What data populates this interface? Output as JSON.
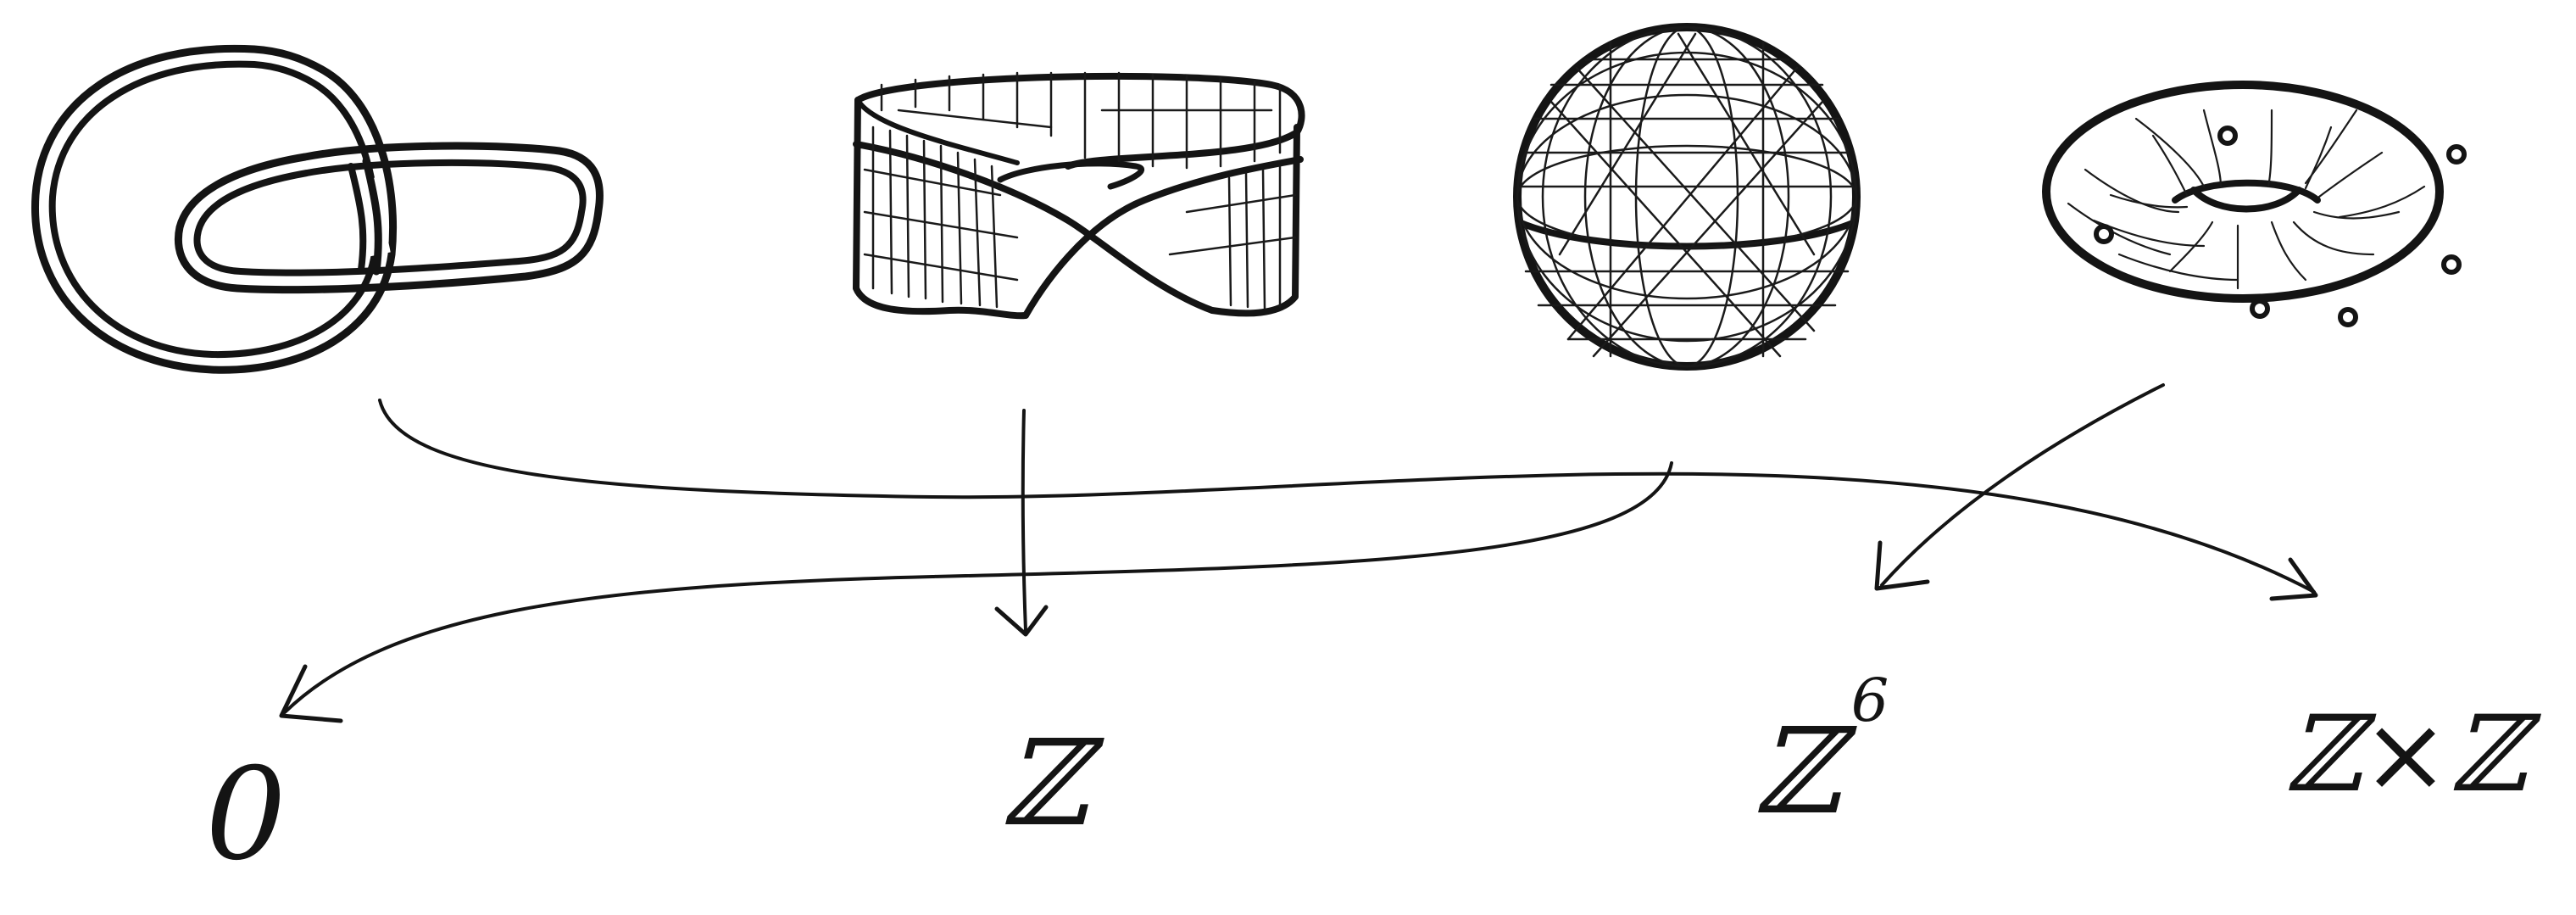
{
  "diagram": {
    "labels": {
      "zero": "0",
      "integers": "ℤ",
      "integers_six_base": "ℤ",
      "integers_six_exp": "6",
      "product": "ℤ×ℤ"
    }
  }
}
